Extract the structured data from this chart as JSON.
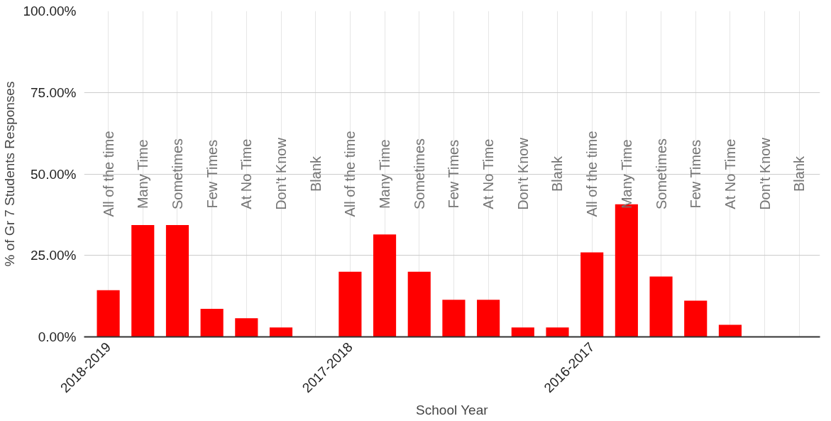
{
  "chart_data": {
    "type": "bar",
    "xlabel": "School Year",
    "ylabel": "% of Gr 7 Students Responses",
    "categories": [
      "All of the time",
      "Many Time",
      "Sometimes",
      "Few Times",
      "At No Time",
      "Don't Know",
      "Blank",
      "All of the time",
      "Many Time",
      "Sometimes",
      "Few Times",
      "At No Time",
      "Don't Know",
      "Blank",
      "All of the time",
      "Many Time",
      "Sometimes",
      "Few Times",
      "At No Time",
      "Don't Know",
      "Blank"
    ],
    "values": [
      14.3,
      34.3,
      34.3,
      8.6,
      5.7,
      2.9,
      0,
      20,
      31.4,
      20,
      11.4,
      11.4,
      2.9,
      2.9,
      25.9,
      40.7,
      18.5,
      11.1,
      3.7,
      0,
      0
    ],
    "color": "#ff0000",
    "ylim": [
      0,
      100
    ],
    "yticks": [
      {
        "value": 0,
        "label": "0.00%"
      },
      {
        "value": 25,
        "label": "25.00%"
      },
      {
        "value": 50,
        "label": "50.00%"
      },
      {
        "value": 75,
        "label": "75.00%"
      },
      {
        "value": 100,
        "label": "100.00%"
      }
    ],
    "annotations": [
      "2018-2019",
      "2017-2018",
      "2016-2017"
    ],
    "grid": true
  }
}
